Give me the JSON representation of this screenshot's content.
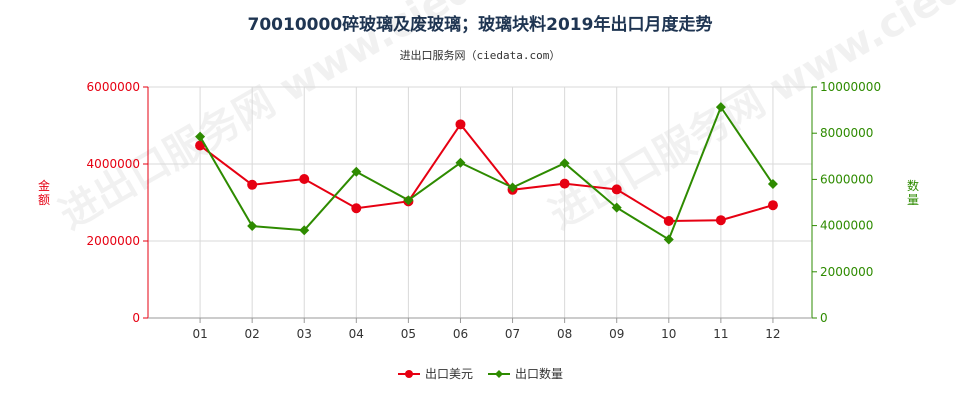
{
  "chart_data": {
    "type": "line",
    "title": "70010000碎玻璃及废玻璃；玻璃块料2019年出口月度走势",
    "subtitle": "进出口服务网（ciedata.com）",
    "categories": [
      "01",
      "02",
      "03",
      "04",
      "05",
      "06",
      "07",
      "08",
      "09",
      "10",
      "11",
      "12"
    ],
    "y_left": {
      "label": "金额",
      "range": [
        0,
        6000000
      ],
      "ticks": [
        0,
        2000000,
        4000000,
        6000000
      ]
    },
    "y_right": {
      "label": "数量",
      "range": [
        0,
        10000000
      ],
      "ticks": [
        0,
        2000000,
        4000000,
        6000000,
        8000000,
        10000000
      ]
    },
    "series": [
      {
        "name": "出口美元",
        "axis": "left",
        "color": "#e60012",
        "values": [
          4480000,
          3460000,
          3610000,
          2850000,
          3030000,
          5030000,
          3330000,
          3490000,
          3340000,
          2520000,
          2540000,
          2930000
        ]
      },
      {
        "name": "出口数量",
        "axis": "right",
        "color": "#2e8b00",
        "values": [
          7850000,
          3980000,
          3800000,
          6330000,
          5100000,
          6720000,
          5650000,
          6700000,
          4780000,
          3400000,
          9130000,
          5800000
        ]
      }
    ],
    "grid": true,
    "legend_position": "bottom-center"
  },
  "watermark_text": "进出口服务网 www.ciedata.com"
}
